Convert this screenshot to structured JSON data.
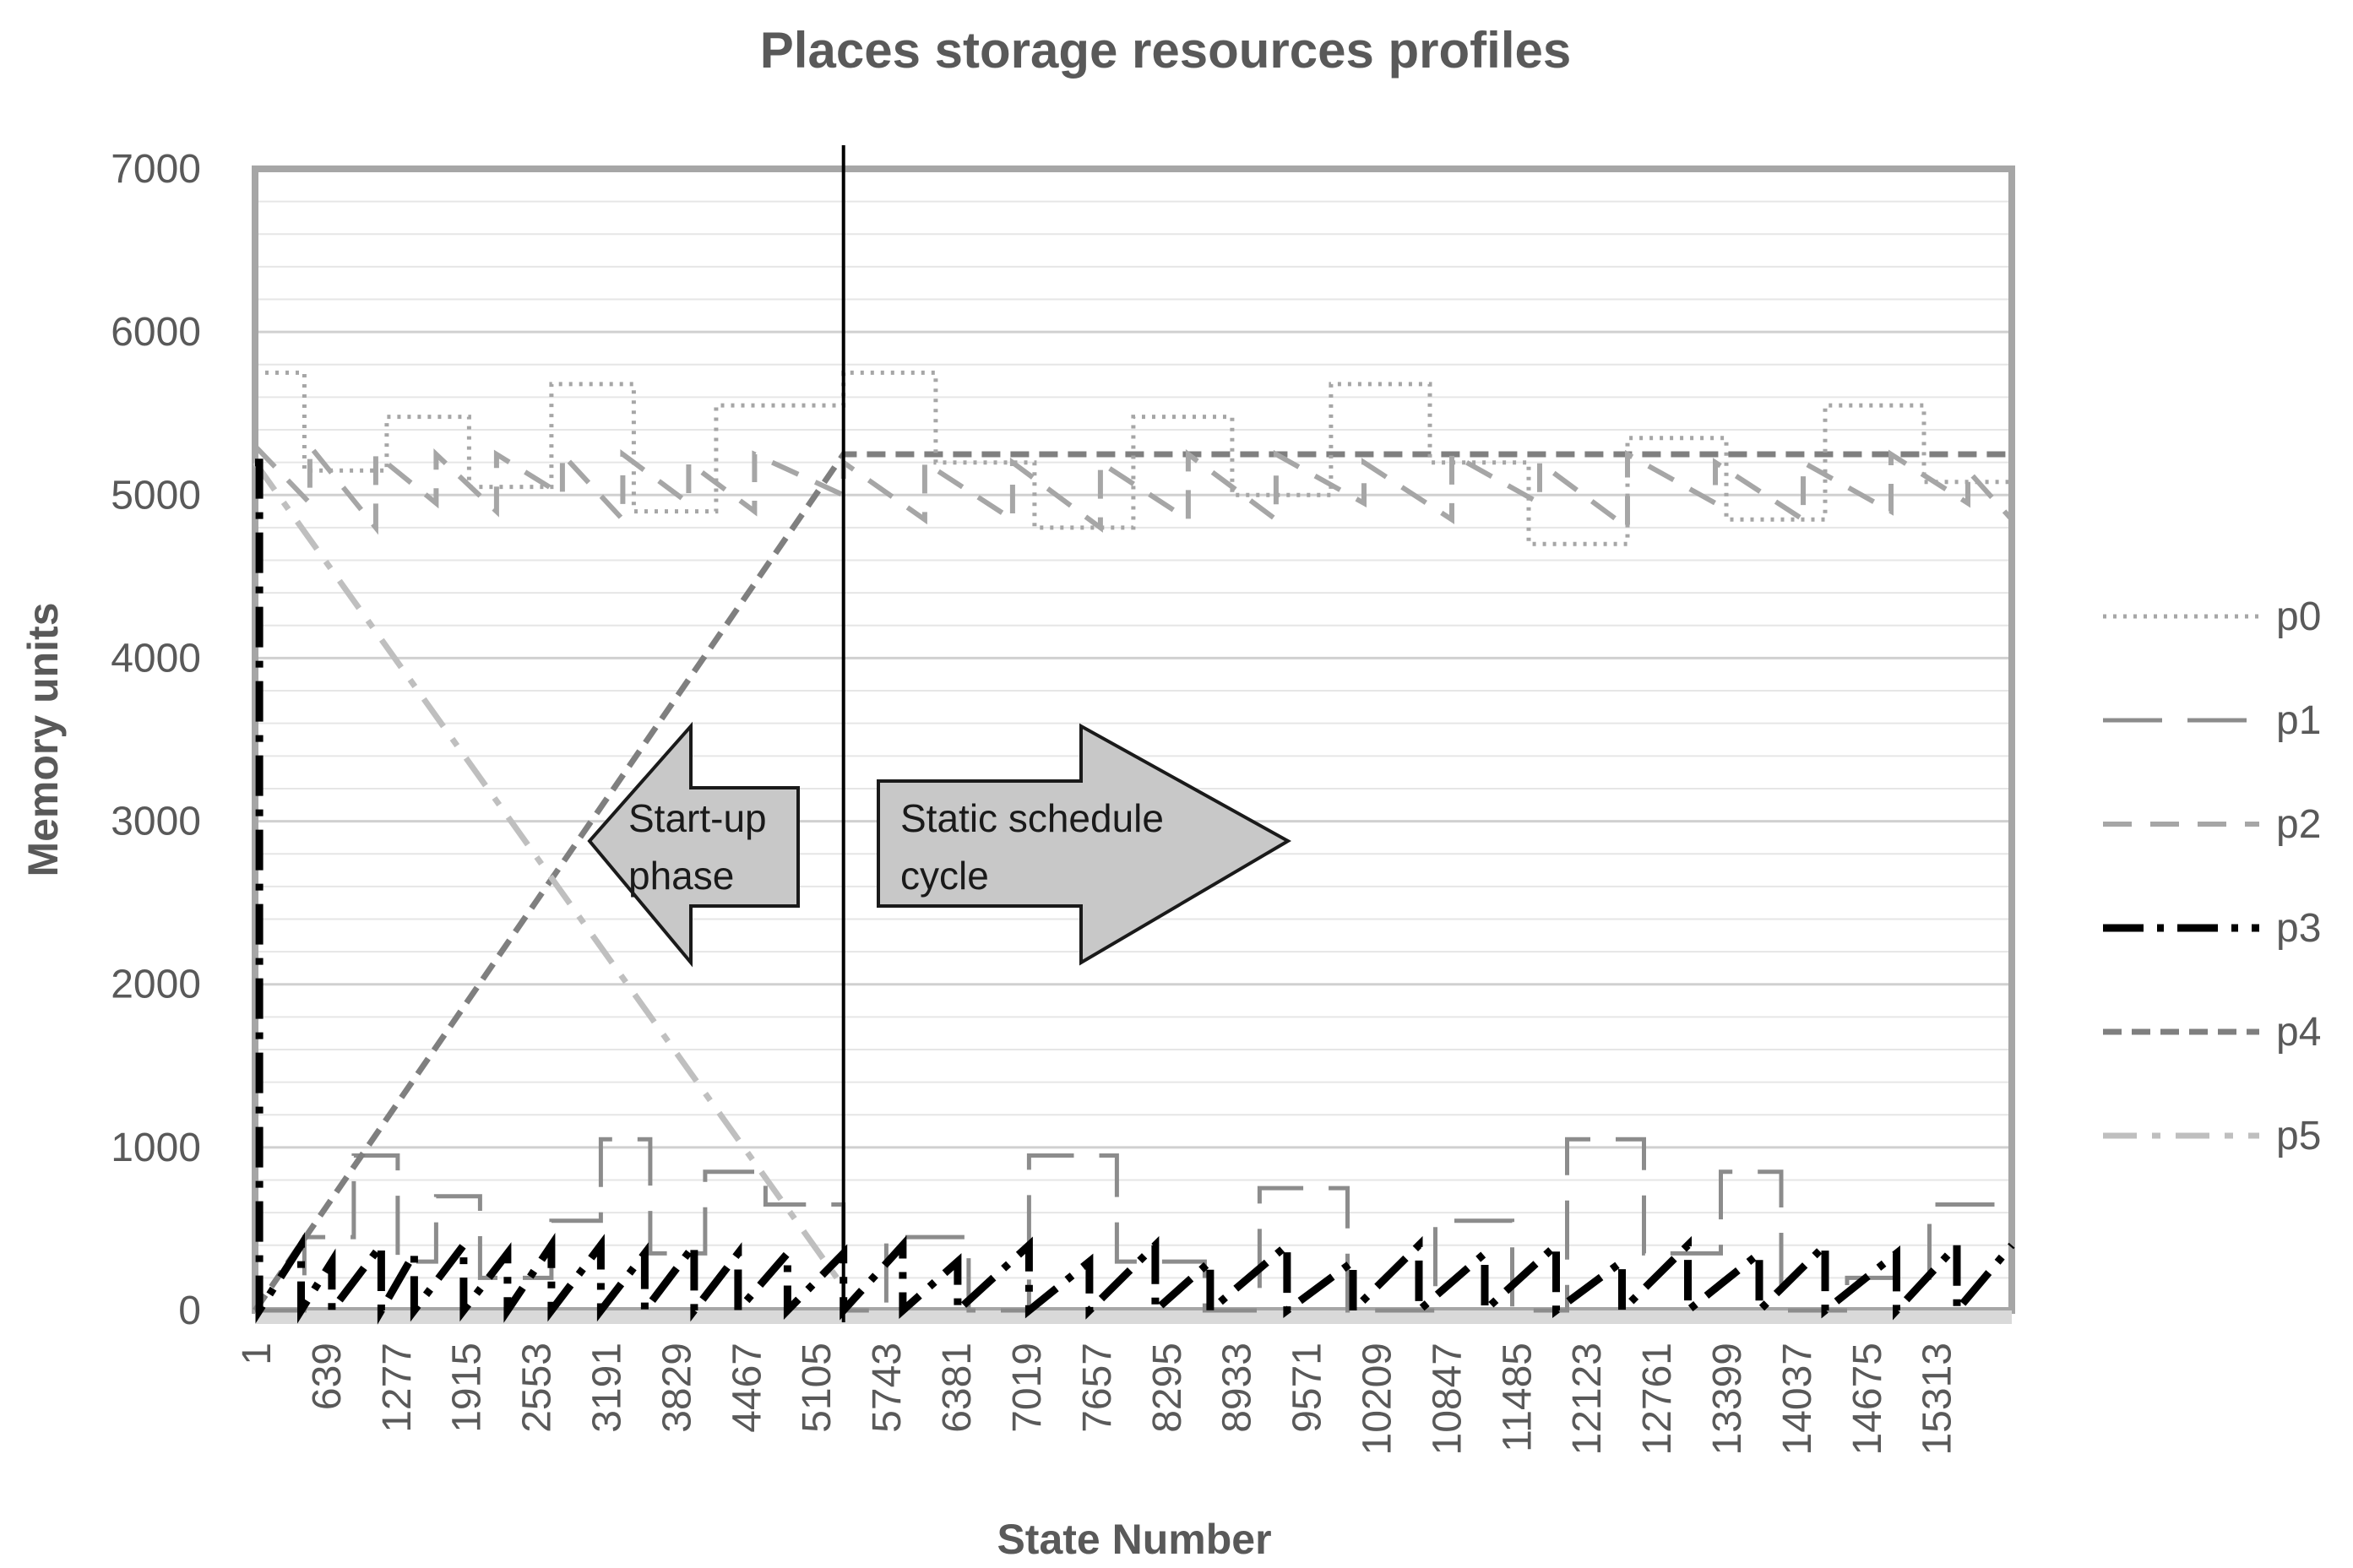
{
  "chart_data": {
    "type": "line",
    "title": "Places storage resources profiles",
    "xlabel": "State Number",
    "ylabel": "Memory units",
    "ylim": [
      0,
      7000
    ],
    "xlim": [
      1,
      16000
    ],
    "grid": true,
    "y_ticks": [
      0,
      1000,
      2000,
      3000,
      4000,
      5000,
      6000,
      7000
    ],
    "x_ticks": [
      "1",
      "639",
      "1277",
      "1915",
      "2553",
      "3191",
      "3829",
      "4467",
      "5105",
      "5743",
      "6381",
      "7019",
      "7657",
      "8295",
      "8933",
      "9571",
      "10209",
      "10847",
      "11485",
      "12123",
      "12761",
      "13399",
      "14037",
      "14675",
      "15313"
    ],
    "legend_position": "right",
    "phase_divider_x": 5360,
    "annotations": [
      {
        "text_lines": [
          "Start-up",
          "phase"
        ],
        "direction": "left"
      },
      {
        "text_lines": [
          "Static schedule",
          "cycle"
        ],
        "direction": "right"
      }
    ],
    "series": [
      {
        "name": "p0",
        "style": "dotted",
        "color": "#a6a6a6",
        "x": [
          1,
          450,
          450,
          1200,
          1200,
          1950,
          1950,
          2700,
          2700,
          3450,
          3450,
          4200,
          4200,
          5360,
          5360,
          6200,
          6200,
          7100,
          7100,
          8000,
          8000,
          8900,
          8900,
          9800,
          9800,
          10700,
          10700,
          11600,
          11600,
          12500,
          12500,
          13400,
          13400,
          14300,
          14300,
          15200,
          15200,
          16000
        ],
        "y": [
          5750,
          5750,
          5150,
          5150,
          5480,
          5480,
          5050,
          5050,
          5680,
          5680,
          4900,
          4900,
          5550,
          5550,
          5750,
          5750,
          5200,
          5200,
          4800,
          4800,
          5480,
          5480,
          5000,
          5000,
          5680,
          5680,
          5200,
          5200,
          4700,
          4700,
          5350,
          5350,
          4850,
          4850,
          5550,
          5550,
          5080,
          5080
        ]
      },
      {
        "name": "p1",
        "style": "long-dash",
        "color": "#8c8c8c",
        "x": [
          1,
          450,
          450,
          900,
          900,
          1300,
          1300,
          1650,
          1650,
          2050,
          2050,
          2700,
          2700,
          3150,
          3150,
          3600,
          3600,
          4100,
          4100,
          4650,
          4650,
          5360,
          5360,
          5750,
          5750,
          6500,
          6500,
          7050,
          7050,
          7850,
          7850,
          8650,
          8650,
          9150,
          9150,
          9950,
          9950,
          10750,
          10750,
          11450,
          11450,
          11950,
          11950,
          12650,
          12650,
          13350,
          13350,
          13900,
          13900,
          14500,
          14500,
          15250,
          15250,
          16000
        ],
        "y": [
          0,
          0,
          450,
          450,
          950,
          950,
          300,
          300,
          700,
          700,
          200,
          200,
          550,
          550,
          1050,
          1050,
          350,
          350,
          850,
          850,
          650,
          650,
          0,
          0,
          450,
          450,
          0,
          0,
          950,
          950,
          300,
          300,
          0,
          0,
          750,
          750,
          0,
          0,
          550,
          550,
          0,
          0,
          1050,
          1050,
          350,
          350,
          850,
          850,
          0,
          0,
          200,
          200,
          650,
          650
        ]
      },
      {
        "name": "p2",
        "style": "dash",
        "color": "#a6a6a6",
        "x": [
          1,
          500,
          500,
          1100,
          1100,
          1650,
          1650,
          2200,
          2200,
          2800,
          2800,
          3350,
          3350,
          3950,
          3950,
          4550,
          4550,
          5360,
          5360,
          6100,
          6100,
          6900,
          6900,
          7700,
          7700,
          8500,
          8500,
          9300,
          9300,
          10100,
          10100,
          10900,
          10900,
          11700,
          11700,
          12500,
          12500,
          13300,
          13300,
          14100,
          14100,
          14900,
          14900,
          15600,
          15600,
          16000
        ],
        "y": [
          5300,
          4950,
          5300,
          4800,
          5250,
          4950,
          5250,
          4900,
          5250,
          5000,
          5250,
          4850,
          5250,
          4950,
          5200,
          4900,
          5250,
          5000,
          5200,
          4850,
          5200,
          4850,
          5200,
          4800,
          5200,
          4850,
          5250,
          4850,
          5250,
          4950,
          5200,
          4850,
          5250,
          4950,
          5200,
          4800,
          5250,
          4950,
          5200,
          4850,
          5200,
          4900,
          5250,
          4950,
          5150,
          4850
        ]
      },
      {
        "name": "p3",
        "style": "dash-dot-bold",
        "color": "#000000",
        "x": [
          1,
          40,
          40,
          420,
          420,
          700,
          700,
          1150,
          1150,
          1450,
          1450,
          1900,
          1900,
          2300,
          2300,
          2700,
          2700,
          3150,
          3150,
          3550,
          3550,
          4000,
          4000,
          4400,
          4400,
          4850,
          4850,
          5360,
          5360,
          5900,
          5900,
          6400,
          6400,
          7050,
          7050,
          7600,
          7600,
          8200,
          8200,
          8700,
          8700,
          9400,
          9400,
          10000,
          10000,
          10600,
          10600,
          11200,
          11200,
          11850,
          11850,
          12450,
          12450,
          13050,
          13050,
          13700,
          13700,
          14300,
          14300,
          14950,
          14950,
          15500,
          15500,
          16000
        ],
        "y": [
          5200,
          5200,
          0,
          400,
          0,
          300,
          0,
          400,
          0,
          350,
          0,
          400,
          0,
          350,
          0,
          400,
          0,
          400,
          0,
          350,
          0,
          400,
          0,
          350,
          0,
          350,
          0,
          350,
          0,
          400,
          0,
          300,
          0,
          400,
          0,
          300,
          0,
          400,
          0,
          300,
          0,
          400,
          0,
          300,
          0,
          400,
          0,
          350,
          0,
          400,
          0,
          300,
          0,
          400,
          0,
          350,
          0,
          400,
          0,
          350,
          0,
          400,
          0,
          400
        ]
      },
      {
        "name": "p4",
        "style": "short-dash-bold",
        "color": "#7f7f7f",
        "x": [
          1,
          5360,
          16000
        ],
        "y": [
          0,
          5250,
          5250
        ]
      },
      {
        "name": "p5",
        "style": "dash-dot",
        "color": "#bfbfbf",
        "x": [
          1,
          5300
        ],
        "y": [
          5200,
          200
        ]
      }
    ]
  },
  "colors": {
    "axis_text": "#595959",
    "plot_border": "#a6a6a6",
    "grid": "#d9d9d9",
    "arrow_fill": "#c8c8c8"
  }
}
